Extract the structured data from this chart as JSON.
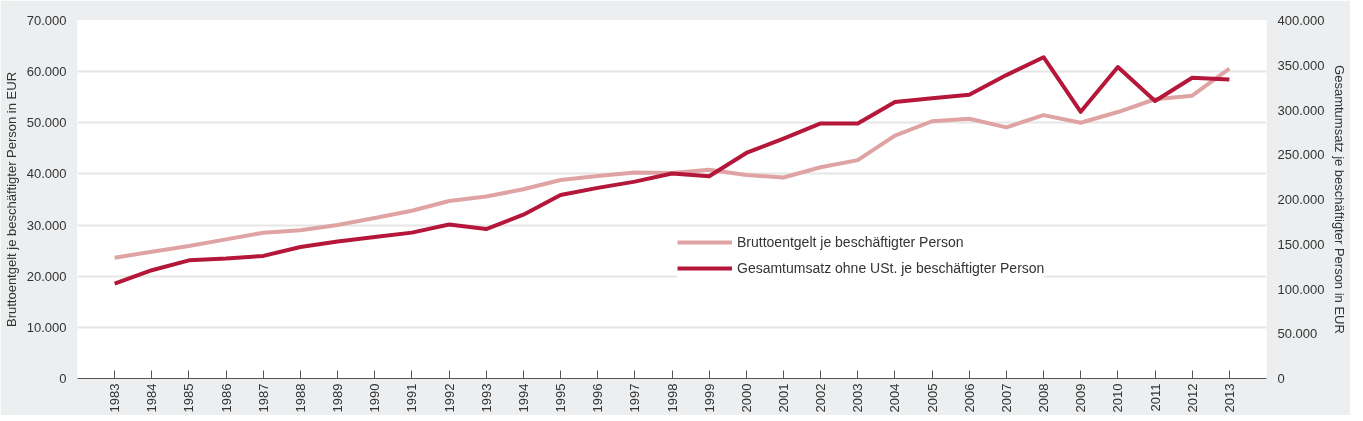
{
  "chart_data": {
    "type": "line",
    "xlabel": null,
    "ylabel": "Bruttoentgelt je beschäftigter Person in EUR",
    "y2label": "Gesamtumsatz je beschäftigter Person in EUR",
    "categories": [
      "1983",
      "1984",
      "1985",
      "1986",
      "1987",
      "1988",
      "1989",
      "1990",
      "1991",
      "1992",
      "1993",
      "1994",
      "1995",
      "1996",
      "1997",
      "1998",
      "1999",
      "2000",
      "2001",
      "2002",
      "2003",
      "2004",
      "2005",
      "2006",
      "2007",
      "2008",
      "2009",
      "2010",
      "2011",
      "2012",
      "2013"
    ],
    "series": [
      {
        "name": "Bruttoentgelt je beschäftigter Person",
        "color": "#e0a3a3",
        "values": [
          23600,
          24800,
          25900,
          27200,
          28500,
          29000,
          30000,
          31400,
          32800,
          34700,
          35600,
          37000,
          38800,
          39600,
          40300,
          40200,
          40800,
          39800,
          39300,
          41300,
          42700,
          47500,
          50300,
          50800,
          49100,
          51500,
          50000,
          52100,
          54600,
          55300,
          60600
        ]
      },
      {
        "name": "Gesamtumsatz ohne USt. je beschäftigter Person",
        "color": "#b5173a",
        "axis": "y2",
        "values": [
          106000,
          121000,
          132000,
          134000,
          137000,
          147000,
          153000,
          158000,
          163000,
          172000,
          167000,
          183000,
          205000,
          213000,
          220000,
          229000,
          226000,
          252000,
          268000,
          285000,
          285000,
          309000,
          313000,
          317000,
          339000,
          359000,
          298000,
          348000,
          310000,
          336000,
          334000
        ]
      }
    ],
    "ylim": [
      0,
      70000
    ],
    "yticks": [
      {
        "value": 0,
        "label": "0"
      },
      {
        "value": 10000,
        "label": "10.000"
      },
      {
        "value": 20000,
        "label": "20.000"
      },
      {
        "value": 30000,
        "label": "30.000"
      },
      {
        "value": 40000,
        "label": "40.000"
      },
      {
        "value": 50000,
        "label": "50.000"
      },
      {
        "value": 60000,
        "label": "60.000"
      },
      {
        "value": 70000,
        "label": "70.000"
      }
    ],
    "y2lim": [
      0,
      400000
    ],
    "y2ticks": [
      {
        "value": 0,
        "label": "0"
      },
      {
        "value": 50000,
        "label": "50.000"
      },
      {
        "value": 100000,
        "label": "100.000"
      },
      {
        "value": 150000,
        "label": "150.000"
      },
      {
        "value": 200000,
        "label": "200.000"
      },
      {
        "value": 250000,
        "label": "250.000"
      },
      {
        "value": 300000,
        "label": "300.000"
      },
      {
        "value": 350000,
        "label": "350.000"
      },
      {
        "value": 400000,
        "label": "400.000"
      }
    ],
    "grid": "y",
    "legend": "center",
    "marker": "none",
    "line_style": "solid"
  }
}
